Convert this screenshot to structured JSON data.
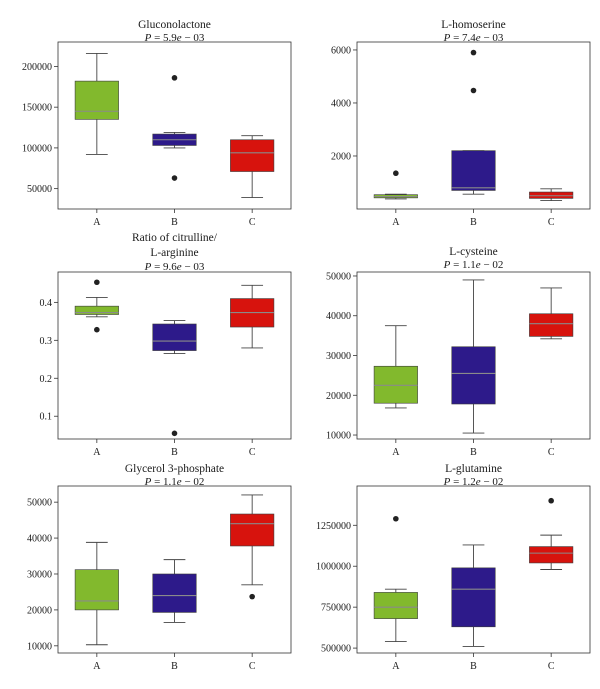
{
  "chart_data": [
    {
      "type": "box",
      "title": "Gluconolactone",
      "subtitle": "P = 5.9e − 03",
      "categories": [
        "A",
        "B",
        "C"
      ],
      "ylim": [
        25000,
        230000
      ],
      "yticks": [
        50000,
        100000,
        150000,
        200000
      ],
      "ytick_labels": [
        "50000",
        "100000",
        "150000",
        "200000"
      ],
      "boxes": [
        {
          "category": "A",
          "color": "#82b92d",
          "whisker_low": 92000,
          "q1": 135000,
          "median": 145000,
          "q3": 182000,
          "whisker_high": 216000,
          "outliers": []
        },
        {
          "category": "B",
          "color": "#2d1a8a",
          "whisker_low": 100000,
          "q1": 103000,
          "median": 110000,
          "q3": 117000,
          "whisker_high": 119000,
          "outliers": [
            186000,
            63000
          ]
        },
        {
          "category": "C",
          "color": "#d7130d",
          "whisker_low": 39000,
          "q1": 71000,
          "median": 94000,
          "q3": 110000,
          "whisker_high": 115000,
          "outliers": []
        }
      ]
    },
    {
      "type": "box",
      "title": "L-homoserine",
      "subtitle": "P = 7.4e − 03",
      "categories": [
        "A",
        "B",
        "C"
      ],
      "ylim": [
        0,
        6300
      ],
      "yticks": [
        2000,
        4000,
        6000
      ],
      "ytick_labels": [
        "2000",
        "4000",
        "6000"
      ],
      "boxes": [
        {
          "category": "A",
          "color": "#82b92d",
          "whisker_low": 380,
          "q1": 420,
          "median": 470,
          "q3": 540,
          "whisker_high": 560,
          "outliers": [
            1350
          ]
        },
        {
          "category": "B",
          "color": "#2d1a8a",
          "whisker_low": 560,
          "q1": 700,
          "median": 800,
          "q3": 2200,
          "whisker_high": 2200,
          "outliers": [
            5900,
            4470
          ]
        },
        {
          "category": "C",
          "color": "#d7130d",
          "whisker_low": 320,
          "q1": 400,
          "median": 500,
          "q3": 640,
          "whisker_high": 760,
          "outliers": []
        }
      ]
    },
    {
      "type": "box",
      "title": "Ratio of citrulline/",
      "title_line2": "L-arginine",
      "subtitle": "P = 9.6e − 03",
      "categories": [
        "A",
        "B",
        "C"
      ],
      "ylim": [
        0.04,
        0.48
      ],
      "yticks": [
        0.1,
        0.2,
        0.3,
        0.4
      ],
      "ytick_labels": [
        "0.1",
        "0.2",
        "0.3",
        "0.4"
      ],
      "boxes": [
        {
          "category": "A",
          "color": "#82b92d",
          "whisker_low": 0.362,
          "q1": 0.368,
          "median": 0.373,
          "q3": 0.39,
          "whisker_high": 0.413,
          "outliers": [
            0.453,
            0.328
          ]
        },
        {
          "category": "B",
          "color": "#2d1a8a",
          "whisker_low": 0.265,
          "q1": 0.273,
          "median": 0.298,
          "q3": 0.343,
          "whisker_high": 0.352,
          "outliers": [
            0.055
          ]
        },
        {
          "category": "C",
          "color": "#d7130d",
          "whisker_low": 0.28,
          "q1": 0.335,
          "median": 0.373,
          "q3": 0.41,
          "whisker_high": 0.445,
          "outliers": []
        }
      ]
    },
    {
      "type": "box",
      "title": "L-cysteine",
      "subtitle": "P = 1.1e − 02",
      "categories": [
        "A",
        "B",
        "C"
      ],
      "ylim": [
        9000,
        51000
      ],
      "yticks": [
        10000,
        20000,
        30000,
        40000,
        50000
      ],
      "ytick_labels": [
        "10000",
        "20000",
        "30000",
        "40000",
        "50000"
      ],
      "boxes": [
        {
          "category": "A",
          "color": "#82b92d",
          "whisker_low": 16800,
          "q1": 18000,
          "median": 22500,
          "q3": 27300,
          "whisker_high": 37500,
          "outliers": []
        },
        {
          "category": "B",
          "color": "#2d1a8a",
          "whisker_low": 10500,
          "q1": 17800,
          "median": 25500,
          "q3": 32200,
          "whisker_high": 49000,
          "outliers": []
        },
        {
          "category": "C",
          "color": "#d7130d",
          "whisker_low": 34200,
          "q1": 34800,
          "median": 38000,
          "q3": 40500,
          "whisker_high": 47000,
          "outliers": []
        }
      ]
    },
    {
      "type": "box",
      "title": "Glycerol 3-phosphate",
      "subtitle": "P = 1.1e − 02",
      "categories": [
        "A",
        "B",
        "C"
      ],
      "ylim": [
        8000,
        54500
      ],
      "yticks": [
        10000,
        20000,
        30000,
        40000,
        50000
      ],
      "ytick_labels": [
        "10000",
        "20000",
        "30000",
        "40000",
        "50000"
      ],
      "boxes": [
        {
          "category": "A",
          "color": "#82b92d",
          "whisker_low": 10300,
          "q1": 20000,
          "median": 22500,
          "q3": 31200,
          "whisker_high": 38800,
          "outliers": []
        },
        {
          "category": "B",
          "color": "#2d1a8a",
          "whisker_low": 16500,
          "q1": 19300,
          "median": 24000,
          "q3": 30000,
          "whisker_high": 34000,
          "outliers": []
        },
        {
          "category": "C",
          "color": "#d7130d",
          "whisker_low": 27000,
          "q1": 37800,
          "median": 44000,
          "q3": 46700,
          "whisker_high": 52000,
          "outliers": [
            23700
          ]
        }
      ]
    },
    {
      "type": "box",
      "title": "L-glutamine",
      "subtitle": "P = 1.2e − 02",
      "categories": [
        "A",
        "B",
        "C"
      ],
      "ylim": [
        470000,
        1490000
      ],
      "yticks": [
        500000,
        750000,
        1000000,
        1250000
      ],
      "ytick_labels": [
        "500000",
        "750000",
        "1000000",
        "1250000"
      ],
      "boxes": [
        {
          "category": "A",
          "color": "#82b92d",
          "whisker_low": 540000,
          "q1": 680000,
          "median": 750000,
          "q3": 840000,
          "whisker_high": 860000,
          "outliers": [
            1290000
          ]
        },
        {
          "category": "B",
          "color": "#2d1a8a",
          "whisker_low": 510000,
          "q1": 630000,
          "median": 860000,
          "q3": 990000,
          "whisker_high": 1130000,
          "outliers": []
        },
        {
          "category": "C",
          "color": "#d7130d",
          "whisker_low": 980000,
          "q1": 1020000,
          "median": 1080000,
          "q3": 1120000,
          "whisker_high": 1190000,
          "outliers": [
            1400000
          ]
        }
      ]
    }
  ],
  "colors": {
    "axis": "#333333",
    "median_line": "#8a8a8a",
    "whisker": "#444444",
    "outlier": "#222222"
  }
}
